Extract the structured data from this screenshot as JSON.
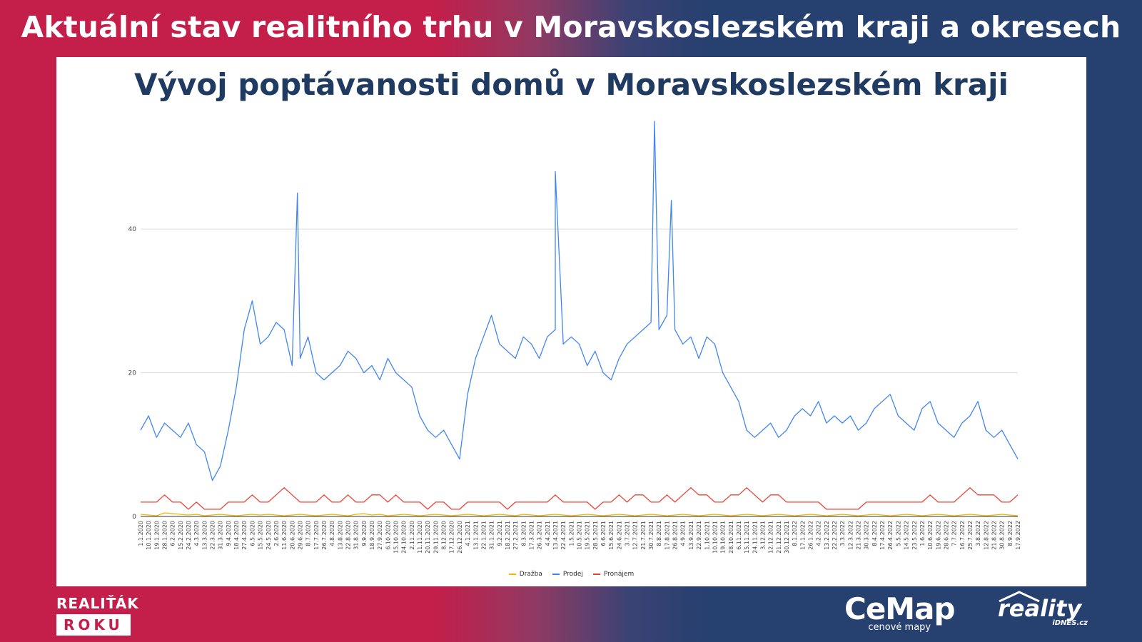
{
  "header": {
    "title": "Aktuální stav realitního trhu v Moravskoslezském kraji a okresech"
  },
  "chart_data": {
    "type": "line",
    "title": "Vývoj poptávanosti domů v Moravskoslezském kraji",
    "xlabel": "",
    "ylabel": "",
    "ylim": [
      0,
      55
    ],
    "yticks": [
      0,
      20,
      40
    ],
    "grid": true,
    "legend_position": "bottom",
    "x_start": "1.1.2020",
    "x_end": "25.9.2022",
    "tick_labels": [
      "1.1.2020",
      "10.1.2020",
      "19.1.2020",
      "28.1.2020",
      "6.2.2020",
      "15.2.2020",
      "24.2.2020",
      "4.3.2020",
      "13.3.2020",
      "22.3.2020",
      "31.3.2020",
      "9.4.2020",
      "18.4.2020",
      "27.4.2020",
      "6.5.2020",
      "15.5.2020",
      "24.5.2020",
      "2.6.2020",
      "11.6.2020",
      "20.6.2020",
      "29.6.2020",
      "8.7.2020",
      "17.7.2020",
      "26.7.2020",
      "4.8.2020",
      "13.8.2020",
      "22.8.2020",
      "31.8.2020",
      "9.9.2020",
      "18.9.2020",
      "27.9.2020",
      "6.10.2020",
      "15.10.2020",
      "24.10.2020",
      "2.11.2020",
      "11.11.2020",
      "20.11.2020",
      "29.11.2020",
      "8.12.2020",
      "17.12.2020",
      "26.12.2020",
      "4.1.2021",
      "13.1.2021",
      "22.1.2021",
      "31.1.2021",
      "9.2.2021",
      "18.2.2021",
      "27.2.2021",
      "8.3.2021",
      "17.3.2021",
      "26.3.2021",
      "4.4.2021",
      "13.4.2021",
      "22.4.2021",
      "1.5.2021",
      "10.5.2021",
      "19.5.2021",
      "28.5.2021",
      "6.6.2021",
      "15.6.2021",
      "24.6.2021",
      "3.7.2021",
      "12.7.2021",
      "21.7.2021",
      "30.7.2021",
      "8.8.2021",
      "17.8.2021",
      "26.8.2021",
      "4.9.2021",
      "13.9.2021",
      "22.9.2021",
      "1.10.2021",
      "10.10.2021",
      "19.10.2021",
      "28.10.2021",
      "6.11.2021",
      "15.11.2021",
      "24.11.2021",
      "3.12.2021",
      "12.12.2021",
      "21.12.2021",
      "30.12.2021",
      "8.1.2022",
      "17.1.2022",
      "26.1.2022",
      "4.2.2022",
      "13.2.2022",
      "22.2.2022",
      "3.3.2022",
      "12.3.2022",
      "21.3.2022",
      "30.3.2022",
      "8.4.2022",
      "17.4.2022",
      "26.4.2022",
      "5.5.2022",
      "14.5.2022",
      "23.5.2022",
      "1.6.2022",
      "10.6.2022",
      "19.6.2022",
      "28.6.2022",
      "7.7.2022",
      "16.7.2022",
      "25.7.2022",
      "3.8.2022",
      "12.8.2022",
      "21.8.2022",
      "30.8.2022",
      "8.9.2022",
      "17.9.2022"
    ],
    "series": [
      {
        "name": "Dražba",
        "color": "#f4b400",
        "resolution": "9-day period average",
        "values": [
          0.3,
          0.2,
          0.1,
          0.5,
          0.4,
          0.3,
          0.2,
          0.3,
          0.1,
          0.2,
          0.3,
          0.2,
          0.1,
          0.2,
          0.3,
          0.2,
          0.3,
          0.2,
          0.1,
          0.2,
          0.3,
          0.2,
          0.1,
          0.2,
          0.3,
          0.2,
          0.1,
          0.3,
          0.4,
          0.2,
          0.3,
          0.1,
          0.2,
          0.3,
          0.2,
          0.1,
          0.2,
          0.3,
          0.2,
          0.1,
          0.2,
          0.3,
          0.2,
          0.1,
          0.2,
          0.3,
          0.2,
          0.1,
          0.3,
          0.2,
          0.1,
          0.2,
          0.3,
          0.2,
          0.1,
          0.2,
          0.3,
          0.2,
          0.1,
          0.2,
          0.3,
          0.2,
          0.1,
          0.2,
          0.3,
          0.2,
          0.1,
          0.2,
          0.3,
          0.2,
          0.1,
          0.2,
          0.3,
          0.2,
          0.1,
          0.2,
          0.3,
          0.2,
          0.1,
          0.2,
          0.3,
          0.2,
          0.1,
          0.2,
          0.3,
          0.2,
          0.1,
          0.2,
          0.3,
          0.2,
          0.1,
          0.2,
          0.3,
          0.2,
          0.1,
          0.2,
          0.3,
          0.2,
          0.1,
          0.2,
          0.3,
          0.2,
          0.1,
          0.2,
          0.3,
          0.2,
          0.1,
          0.2,
          0.3,
          0.2,
          0.1
        ]
      },
      {
        "name": "Prodej",
        "color": "#4285f4",
        "resolution": "9-day period average",
        "values": [
          12,
          14,
          11,
          13,
          12,
          11,
          13,
          10,
          9,
          5,
          7,
          12,
          18,
          26,
          30,
          24,
          25,
          27,
          26,
          21,
          22,
          25,
          20,
          19,
          20,
          21,
          23,
          22,
          20,
          21,
          19,
          22,
          20,
          19,
          18,
          14,
          12,
          11,
          12,
          10,
          8,
          17,
          22,
          25,
          28,
          24,
          23,
          22,
          25,
          24,
          22,
          25,
          26,
          24,
          25,
          24,
          21,
          23,
          20,
          19,
          22,
          24,
          25,
          26,
          27,
          26,
          28,
          26,
          24,
          25,
          22,
          25,
          24,
          20,
          18,
          16,
          12,
          11,
          12,
          13,
          11,
          12,
          14,
          15,
          14,
          16,
          13,
          14,
          13,
          14,
          12,
          13,
          15,
          16,
          17,
          14,
          13,
          12,
          15,
          16,
          13,
          12,
          11,
          13,
          14,
          16,
          12,
          11,
          12,
          10,
          8
        ],
        "peaks": [
          {
            "x": "26.6.2020",
            "y": 45
          },
          {
            "x": "13.4.2021",
            "y": 48
          },
          {
            "x": "3.8.2021",
            "y": 55
          },
          {
            "x": "22.8.2021",
            "y": 44
          }
        ]
      },
      {
        "name": "Pronájem",
        "color": "#ea4335",
        "resolution": "9-day period average",
        "values": [
          2,
          2,
          2,
          3,
          2,
          2,
          1,
          2,
          1,
          1,
          1,
          2,
          2,
          2,
          3,
          2,
          2,
          3,
          4,
          3,
          2,
          2,
          2,
          3,
          2,
          2,
          3,
          2,
          2,
          3,
          3,
          2,
          3,
          2,
          2,
          2,
          1,
          2,
          2,
          1,
          1,
          2,
          2,
          2,
          2,
          2,
          1,
          2,
          2,
          2,
          2,
          2,
          3,
          2,
          2,
          2,
          2,
          1,
          2,
          2,
          3,
          2,
          3,
          3,
          2,
          2,
          3,
          2,
          3,
          4,
          3,
          3,
          2,
          2,
          3,
          3,
          4,
          3,
          2,
          3,
          3,
          2,
          2,
          2,
          2,
          2,
          1,
          1,
          1,
          1,
          1,
          2,
          2,
          2,
          2,
          2,
          2,
          2,
          2,
          3,
          2,
          2,
          2,
          3,
          4,
          3,
          3,
          3,
          2,
          2,
          3
        ]
      }
    ]
  },
  "brands": {
    "left_top": "REALIŤÁK",
    "left_bottom": "ROKU",
    "cemap_main": "CeMap",
    "cemap_sub": "cenové mapy",
    "reality_main": "reality",
    "reality_sub": "iDNES.cz"
  }
}
